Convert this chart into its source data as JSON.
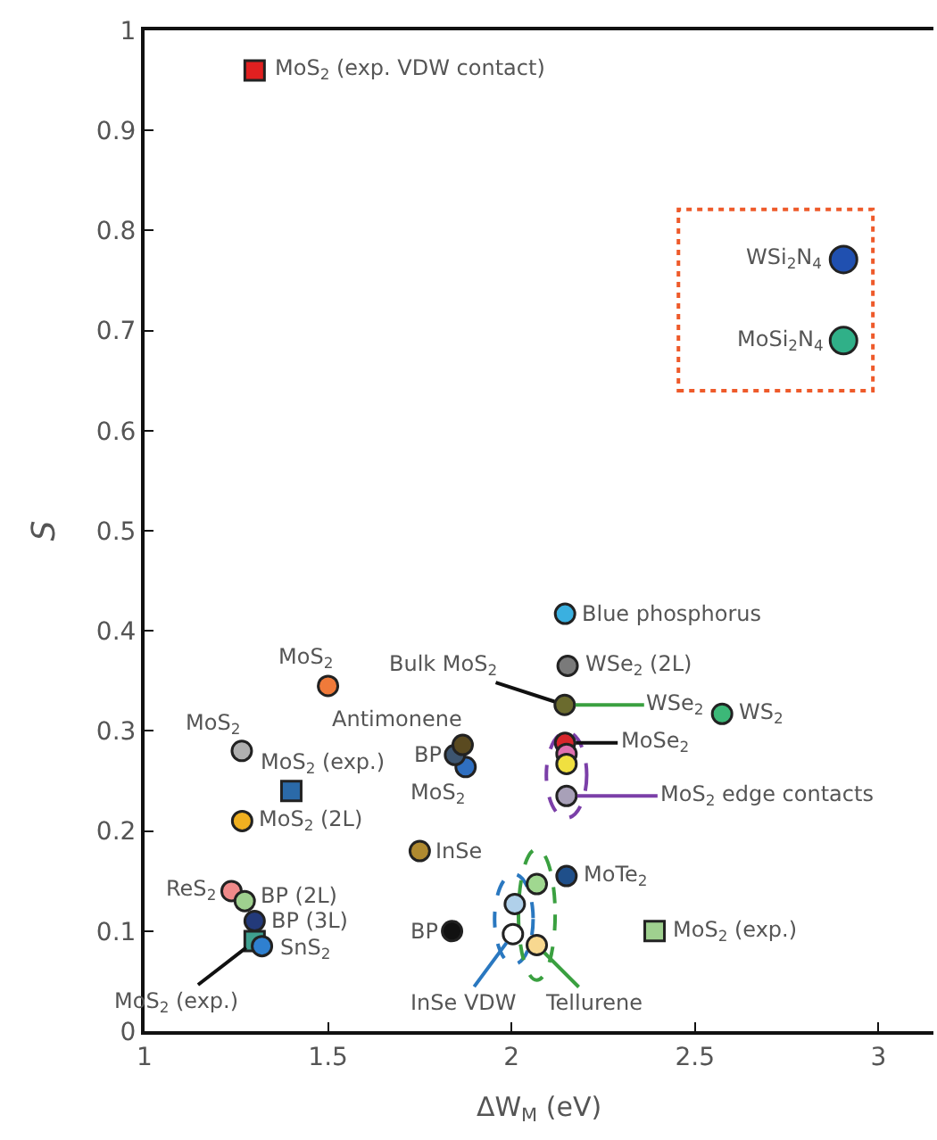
{
  "chart_data": {
    "type": "scatter",
    "xlabel": "ΔW$_{M}$ (eV)",
    "ylabel": "S",
    "xlim": [
      1,
      3.15
    ],
    "xticks": [
      1,
      1.5,
      2,
      2.5,
      3
    ],
    "ylim": [
      0,
      1
    ],
    "yticks": [
      0,
      0.1,
      0.2,
      0.3,
      0.4,
      0.5,
      0.6,
      0.7,
      0.8,
      0.9,
      1
    ],
    "grid": false,
    "series": [
      {
        "marker": "circle",
        "x": [
          2.146,
          2.153,
          2.145,
          2.146,
          2.15,
          2.574,
          1.838,
          1.75,
          1.875,
          1.846,
          1.867,
          1.5,
          1.265,
          1.266,
          1.237,
          1.273,
          1.3,
          1.32
        ],
        "values": [
          0.417,
          0.365,
          0.326,
          0.288,
          0.155,
          0.317,
          0.1,
          0.18,
          0.264,
          0.276,
          0.286,
          0.345,
          0.28,
          0.21,
          0.14,
          0.13,
          0.11,
          0.085
        ],
        "colors": [
          "#3ab0e0",
          "#7a7a7a",
          "#6b6b2e",
          "#d8262c",
          "#1f4f8a",
          "#3cb878",
          "#111111",
          "#b08a30",
          "#2f6fc0",
          "#3d5570",
          "#5a4a20",
          "#f07a3a",
          "#b0b0b0",
          "#f0b020",
          "#f08a8a",
          "#9fd08f",
          "#233a7a",
          "#2f80d0"
        ]
      },
      {
        "marker": "square",
        "x": [
          1.3,
          1.4,
          2.39,
          1.3
        ],
        "values": [
          0.96,
          0.24,
          0.1,
          0.09
        ],
        "colors": [
          "#e02020",
          "#2b6aa8",
          "#9fd08f",
          "#3fa090"
        ]
      },
      {
        "marker": "circle",
        "x": [
          2.15,
          2.15,
          2.15
        ],
        "values": [
          0.277,
          0.267,
          0.235
        ],
        "colors": [
          "#e070b0",
          "#f0e040",
          "#a8a0b8"
        ]
      },
      {
        "marker": "circle",
        "x": [
          2.009,
          2.004
        ],
        "values": [
          0.127,
          0.097
        ],
        "colors": [
          "#b0d0ea",
          "#ffffff"
        ]
      },
      {
        "marker": "circle",
        "x": [
          2.069,
          2.069
        ],
        "values": [
          0.147,
          0.086
        ],
        "colors": [
          "#a0d890",
          "#f8d890"
        ]
      },
      {
        "marker": "circle",
        "x": [
          2.905,
          2.905
        ],
        "values": [
          0.771,
          0.69
        ],
        "colors": [
          "#2050b0",
          "#30b088"
        ]
      }
    ],
    "annotations": [
      {
        "text": "MoS$_{2}$ (exp. VDW contact)",
        "x": 1.3,
        "y": 0.96
      },
      {
        "text": "WSi$_{2}$N$_{4}$",
        "x": 2.905,
        "y": 0.771
      },
      {
        "text": "MoSi$_{2}$N$_{4}$",
        "x": 2.905,
        "y": 0.69
      },
      {
        "text": "Blue phosphorus",
        "x": 2.146,
        "y": 0.417
      },
      {
        "text": "WSe$_{2}$ (2L)",
        "x": 2.153,
        "y": 0.365
      },
      {
        "text": "Bulk MoS$_{2}$",
        "x": 2.145,
        "y": 0.326
      },
      {
        "text": "WSe$_{2}$",
        "x": 2.145,
        "y": 0.326
      },
      {
        "text": "MoSe$_{2}$",
        "x": 2.146,
        "y": 0.288
      },
      {
        "text": "MoS$_{2}$ edge contacts",
        "x": 2.15,
        "y": 0.235
      },
      {
        "text": "MoTe$_{2}$",
        "x": 2.15,
        "y": 0.155
      },
      {
        "text": "WS$_{2}$",
        "x": 2.574,
        "y": 0.317
      },
      {
        "text": "MoS$_{2}$ (exp.)",
        "x": 2.39,
        "y": 0.1
      },
      {
        "text": "InSe VDW",
        "x": 2.004,
        "y": 0.097
      },
      {
        "text": "Tellurene",
        "x": 2.069,
        "y": 0.086
      },
      {
        "text": "BP",
        "x": 1.838,
        "y": 0.1
      },
      {
        "text": "InSe",
        "x": 1.75,
        "y": 0.18
      },
      {
        "text": "MoS$_{2}$",
        "x": 1.875,
        "y": 0.264
      },
      {
        "text": "BP",
        "x": 1.846,
        "y": 0.276
      },
      {
        "text": "Antimonene",
        "x": 1.867,
        "y": 0.286
      },
      {
        "text": "MoS$_{2}$",
        "x": 1.5,
        "y": 0.345
      },
      {
        "text": "MoS$_{2}$",
        "x": 1.265,
        "y": 0.28
      },
      {
        "text": "MoS$_{2}$ (exp.)",
        "x": 1.4,
        "y": 0.24
      },
      {
        "text": "MoS$_{2}$ (2L)",
        "x": 1.266,
        "y": 0.21
      },
      {
        "text": "ReS$_{2}$",
        "x": 1.237,
        "y": 0.14
      },
      {
        "text": "BP (2L)",
        "x": 1.273,
        "y": 0.13
      },
      {
        "text": "BP (3L)",
        "x": 1.3,
        "y": 0.11
      },
      {
        "text": "SnS$_{2}$",
        "x": 1.32,
        "y": 0.085
      },
      {
        "text": "MoS$_{2}$ (exp.)",
        "x": 1.3,
        "y": 0.09
      }
    ]
  }
}
